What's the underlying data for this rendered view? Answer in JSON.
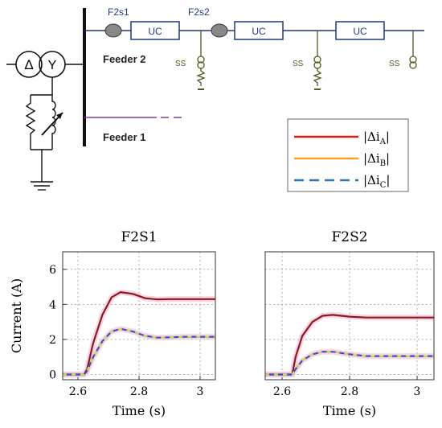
{
  "diagram": {
    "transformer_left": "Δ",
    "transformer_right": "Y",
    "switch_labels": [
      "F2s1",
      "F2s2"
    ],
    "uc_labels": [
      "UC",
      "UC",
      "UC"
    ],
    "ss_labels": [
      "SS",
      "SS",
      "SS"
    ],
    "feeder2_label": "Feeder 2",
    "feeder1_label": "Feeder 1",
    "legend": [
      {
        "text": "|Δi",
        "sub": "A",
        "close": "|",
        "color": "#e0201b",
        "style": "solid"
      },
      {
        "text": "|Δi",
        "sub": "B",
        "close": "|",
        "color": "#f5a623",
        "style": "solid"
      },
      {
        "text": "|Δi",
        "sub": "C",
        "close": "|",
        "color": "#2a7ab8",
        "style": "dashed"
      }
    ],
    "colors": {
      "line": "#1f3a7a",
      "switch_fill": "#888888",
      "ss": "#4b5e23",
      "feeder1": "#7b3fa0"
    }
  },
  "chart_data": [
    {
      "type": "line",
      "title": "F2S1",
      "xlabel": "Time (s)",
      "ylabel": "Current (A)",
      "xlim": [
        2.55,
        3.05
      ],
      "ylim": [
        -0.3,
        7
      ],
      "xticks": [
        "2.6",
        "2.8",
        "3"
      ],
      "yticks": [
        "0",
        "2",
        "4",
        "6"
      ],
      "grid": true,
      "series": [
        {
          "color": "#8b1a1a",
          "x": [
            2.55,
            2.62,
            2.63,
            2.65,
            2.68,
            2.71,
            2.74,
            2.78,
            2.82,
            2.86,
            2.9,
            2.95,
            3.0,
            3.05
          ],
          "y": [
            0,
            0,
            0.3,
            1.8,
            3.4,
            4.4,
            4.7,
            4.6,
            4.35,
            4.28,
            4.3,
            4.3,
            4.3,
            4.3
          ]
        },
        {
          "color": "#3b4fc4",
          "x": [
            2.55,
            2.62,
            2.63,
            2.65,
            2.68,
            2.71,
            2.74,
            2.78,
            2.82,
            2.86,
            2.9,
            2.95,
            3.0,
            3.05
          ],
          "y": [
            0,
            0,
            0.2,
            1.0,
            1.9,
            2.45,
            2.6,
            2.45,
            2.2,
            2.1,
            2.12,
            2.15,
            2.15,
            2.15
          ]
        }
      ]
    },
    {
      "type": "line",
      "title": "F2S2",
      "xlabel": "Time (s)",
      "ylabel": "",
      "xlim": [
        2.55,
        3.05
      ],
      "ylim": [
        -0.3,
        7
      ],
      "xticks": [
        "2.6",
        "2.8",
        "3"
      ],
      "yticks": [],
      "grid": true,
      "series": [
        {
          "color": "#8b1a1a",
          "x": [
            2.55,
            2.63,
            2.64,
            2.66,
            2.69,
            2.72,
            2.75,
            2.8,
            2.85,
            2.9,
            2.95,
            3.0,
            3.05
          ],
          "y": [
            0,
            0,
            1.0,
            2.2,
            3.0,
            3.35,
            3.4,
            3.3,
            3.25,
            3.25,
            3.25,
            3.25,
            3.25
          ]
        },
        {
          "color": "#3b4fc4",
          "x": [
            2.55,
            2.63,
            2.64,
            2.66,
            2.69,
            2.72,
            2.75,
            2.8,
            2.85,
            2.9,
            2.95,
            3.0,
            3.05
          ],
          "y": [
            0,
            0,
            0.3,
            0.8,
            1.15,
            1.3,
            1.3,
            1.15,
            1.05,
            1.05,
            1.05,
            1.05,
            1.05
          ]
        }
      ]
    }
  ]
}
